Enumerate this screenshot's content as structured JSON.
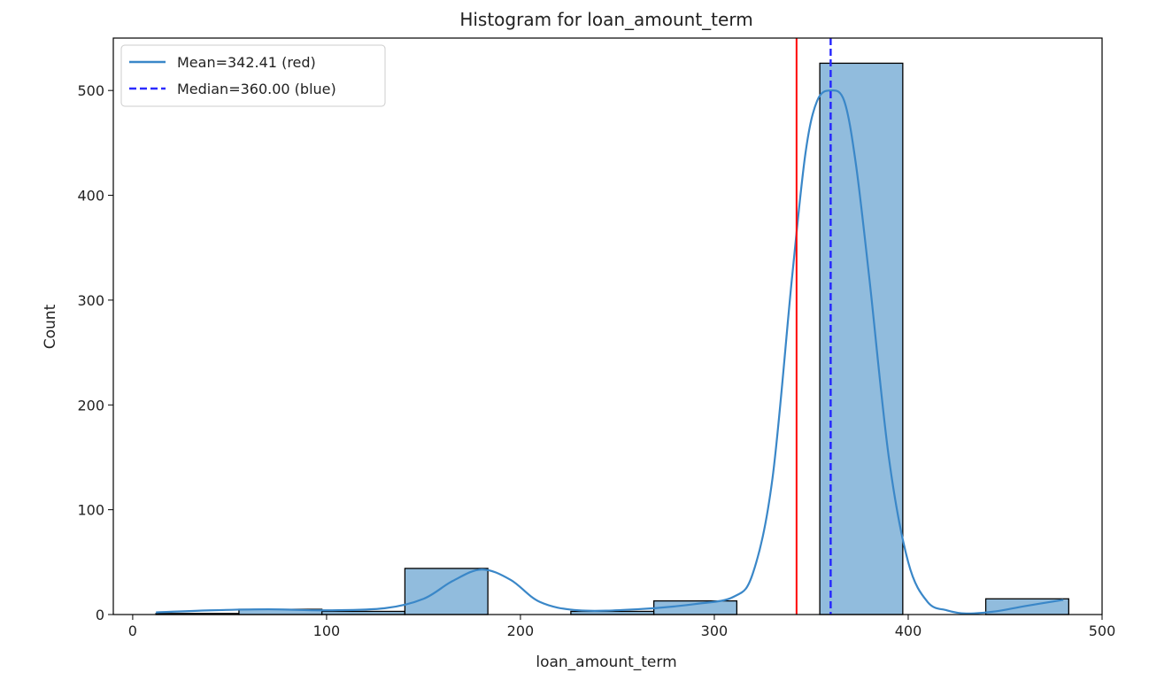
{
  "chart_data": {
    "type": "histogram",
    "title": "Histogram for loan_amount_term",
    "xlabel": "loan_amount_term",
    "ylabel": "Count",
    "xlim": [
      -10,
      500
    ],
    "ylim": [
      0,
      550
    ],
    "xticks": [
      0,
      100,
      200,
      300,
      400,
      500
    ],
    "yticks": [
      0,
      100,
      200,
      300,
      400,
      500
    ],
    "bins": [
      {
        "x0": 12,
        "x1": 54.8,
        "count": 1
      },
      {
        "x0": 54.8,
        "x1": 97.6,
        "count": 5
      },
      {
        "x0": 97.6,
        "x1": 140.4,
        "count": 3
      },
      {
        "x0": 140.4,
        "x1": 183.2,
        "count": 44
      },
      {
        "x0": 183.2,
        "x1": 226.0,
        "count": 0
      },
      {
        "x0": 226.0,
        "x1": 268.8,
        "count": 3
      },
      {
        "x0": 268.8,
        "x1": 311.6,
        "count": 13
      },
      {
        "x0": 311.6,
        "x1": 354.4,
        "count": 0
      },
      {
        "x0": 354.4,
        "x1": 397.2,
        "count": 526
      },
      {
        "x0": 397.2,
        "x1": 440.0,
        "count": 0
      },
      {
        "x0": 440.0,
        "x1": 482.8,
        "count": 15
      }
    ],
    "kde": {
      "x": [
        12,
        40,
        70,
        100,
        130,
        150,
        165,
        180,
        195,
        210,
        230,
        260,
        290,
        310,
        320,
        330,
        340,
        347,
        353,
        360,
        367,
        373,
        380,
        390,
        400,
        410,
        420,
        430,
        445,
        460,
        480
      ],
      "y": [
        2,
        4,
        5,
        4,
        6,
        15,
        32,
        43,
        33,
        12,
        4,
        5,
        10,
        17,
        40,
        130,
        320,
        440,
        490,
        500,
        490,
        430,
        320,
        150,
        50,
        12,
        4,
        1,
        3,
        8,
        14
      ]
    },
    "mean": 342.41,
    "median": 360.0,
    "legend": [
      {
        "label": "Mean=342.41 (red)",
        "style": "solid",
        "color": "#3a87c8"
      },
      {
        "label": "Median=360.00 (blue)",
        "style": "dashed",
        "color": "#2b2bff"
      }
    ],
    "legend_position": "top-left",
    "colors": {
      "bar_fill": "#91bcdd",
      "bar_edge": "#000000",
      "kde_line": "#3a87c8",
      "mean_line": "#ff0000",
      "median_line": "#2424ff"
    }
  }
}
